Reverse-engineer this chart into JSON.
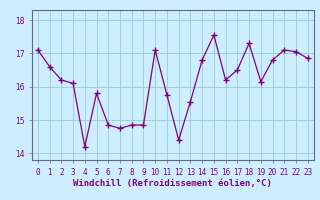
{
  "x": [
    0,
    1,
    2,
    3,
    4,
    5,
    6,
    7,
    8,
    9,
    10,
    11,
    12,
    13,
    14,
    15,
    16,
    17,
    18,
    19,
    20,
    21,
    22,
    23
  ],
  "y": [
    17.1,
    16.6,
    16.2,
    16.1,
    14.2,
    15.8,
    14.85,
    14.75,
    14.85,
    14.85,
    17.1,
    15.75,
    14.4,
    15.55,
    16.8,
    17.55,
    16.2,
    16.5,
    17.3,
    16.15,
    16.8,
    17.1,
    17.05,
    16.85
  ],
  "line_color": "#800080",
  "marker": "+",
  "marker_size": 4,
  "marker_linewidth": 1.0,
  "bg_color": "#cceeff",
  "grid_color": "#99cccc",
  "xlabel": "Windchill (Refroidissement éolien,°C)",
  "ylim": [
    13.8,
    18.3
  ],
  "xlim": [
    -0.5,
    23.5
  ],
  "yticks": [
    14,
    15,
    16,
    17,
    18
  ],
  "xticks": [
    0,
    1,
    2,
    3,
    4,
    5,
    6,
    7,
    8,
    9,
    10,
    11,
    12,
    13,
    14,
    15,
    16,
    17,
    18,
    19,
    20,
    21,
    22,
    23
  ],
  "xtick_labels": [
    "0",
    "1",
    "2",
    "3",
    "4",
    "5",
    "6",
    "7",
    "8",
    "9",
    "10",
    "11",
    "12",
    "13",
    "14",
    "15",
    "16",
    "17",
    "18",
    "19",
    "20",
    "21",
    "22",
    "23"
  ],
  "tick_fontsize": 5.5,
  "xlabel_fontsize": 6.5,
  "line_width": 0.9,
  "spine_color": "#666688"
}
